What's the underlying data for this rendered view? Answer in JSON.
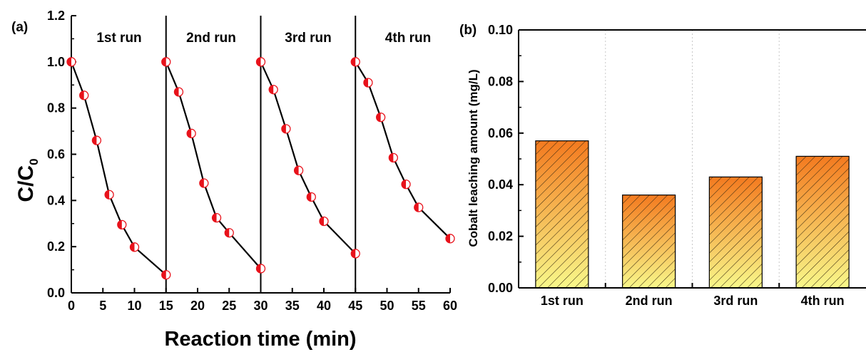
{
  "chart_data": [
    {
      "type": "line",
      "panel_label": "(a)",
      "xlabel": "Reaction time (min)",
      "ylabel_main": "C/C",
      "ylabel_sub": "0",
      "xlim": [
        0,
        60
      ],
      "ylim": [
        0.0,
        1.2
      ],
      "xticks": [
        "0",
        "5",
        "10",
        "15",
        "20",
        "25",
        "30",
        "35",
        "40",
        "45",
        "50",
        "55",
        "60"
      ],
      "yticks": [
        "0.0",
        "0.2",
        "0.4",
        "0.6",
        "0.8",
        "1.0",
        "1.2"
      ],
      "separators": [
        15,
        30,
        45
      ],
      "grid": false,
      "run_labels": [
        "1st run",
        "2nd run",
        "3rd run",
        "4th run"
      ],
      "series": [
        {
          "x": [
            0,
            2,
            4,
            6,
            8,
            10,
            15
          ],
          "y": [
            1.0,
            0.855,
            0.66,
            0.425,
            0.295,
            0.198,
            0.078
          ]
        },
        {
          "x": [
            15,
            17,
            19,
            21,
            23,
            25,
            30
          ],
          "y": [
            1.0,
            0.87,
            0.69,
            0.475,
            0.325,
            0.26,
            0.105
          ]
        },
        {
          "x": [
            30,
            32,
            34,
            36,
            38,
            40,
            45
          ],
          "y": [
            1.0,
            0.88,
            0.71,
            0.53,
            0.415,
            0.31,
            0.17
          ]
        },
        {
          "x": [
            45,
            47,
            49,
            51,
            53,
            55,
            60
          ],
          "y": [
            1.0,
            0.91,
            0.76,
            0.585,
            0.47,
            0.37,
            0.235
          ]
        }
      ]
    },
    {
      "type": "bar",
      "panel_label": "(b)",
      "ylabel": "Cobalt leaching amount (mg/L)",
      "categories": [
        "1st run",
        "2nd run",
        "3rd run",
        "4th run"
      ],
      "values": [
        0.057,
        0.036,
        0.043,
        0.051
      ],
      "ylim": [
        0.0,
        0.1
      ],
      "yticks": [
        "0.00",
        "0.02",
        "0.04",
        "0.06",
        "0.08",
        "0.10"
      ],
      "grid": "vertical dotted",
      "colors": {
        "bar_top": "#f47a1f",
        "bar_bottom": "#f8f88a",
        "hatch": "#3a2a10"
      }
    }
  ]
}
